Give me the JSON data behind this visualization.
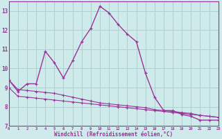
{
  "xlabel": "Windchill (Refroidissement éolien,°C)",
  "background_color": "#ceeaea",
  "grid_color": "#aed0d0",
  "line_color": "#993399",
  "spine_color": "#993399",
  "x_main": [
    0,
    1,
    2,
    3,
    4,
    5,
    6,
    7,
    8,
    9,
    10,
    11,
    12,
    13,
    14,
    15,
    16,
    17,
    18,
    19,
    20,
    21,
    22,
    23
  ],
  "y_main": [
    9.4,
    8.8,
    9.2,
    9.2,
    10.9,
    10.3,
    9.5,
    10.4,
    11.4,
    12.1,
    13.25,
    12.9,
    12.3,
    11.8,
    11.4,
    9.75,
    8.5,
    7.8,
    7.8,
    7.6,
    7.5,
    7.3,
    7.3,
    7.3
  ],
  "y_flat1": [
    9.4,
    8.9,
    8.85,
    8.8,
    8.75,
    8.7,
    8.6,
    8.5,
    8.4,
    8.3,
    8.2,
    8.15,
    8.1,
    8.05,
    8.0,
    7.95,
    7.85,
    7.8,
    7.75,
    7.7,
    7.65,
    7.55,
    7.5,
    7.45
  ],
  "y_flat2": [
    9.0,
    8.55,
    8.5,
    8.45,
    8.4,
    8.35,
    8.3,
    8.25,
    8.2,
    8.15,
    8.1,
    8.05,
    8.0,
    7.95,
    7.9,
    7.85,
    7.8,
    7.75,
    7.7,
    7.65,
    7.6,
    7.55,
    7.5,
    7.45
  ],
  "xlim": [
    0,
    23
  ],
  "ylim": [
    7,
    13.5
  ],
  "yticks": [
    7,
    8,
    9,
    10,
    11,
    12,
    13
  ],
  "xticks": [
    0,
    1,
    2,
    3,
    4,
    5,
    6,
    7,
    8,
    9,
    10,
    11,
    12,
    13,
    14,
    15,
    16,
    17,
    18,
    19,
    20,
    21,
    22,
    23
  ]
}
